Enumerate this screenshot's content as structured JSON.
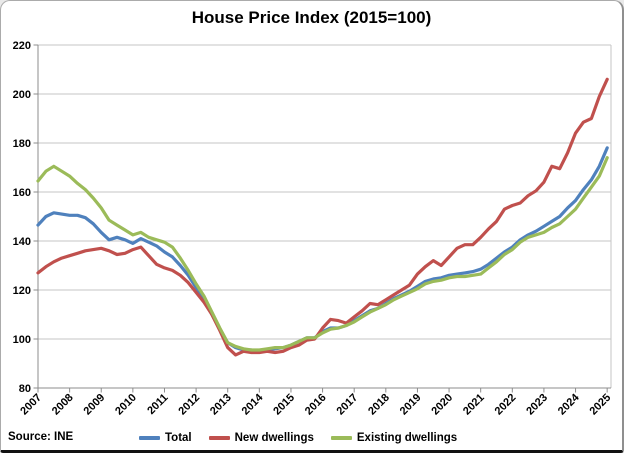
{
  "title": "House Price Index (2015=100)",
  "source": "Source: INE",
  "legend": [
    {
      "label": "Total",
      "color": "#4F81BD"
    },
    {
      "label": "New dwellings",
      "color": "#C0504D"
    },
    {
      "label": "Existing dwellings",
      "color": "#9BBB59"
    }
  ],
  "colors": {
    "grid": "#c6c6c6",
    "axis": "#8c8c8c",
    "text": "#000000",
    "frame": "#ababab",
    "blue": "#4F81BD",
    "red": "#C0504D",
    "green": "#9BBB59"
  },
  "chart_data": {
    "type": "line",
    "title": "House Price Index (2015=100)",
    "xlabel": "",
    "ylabel": "",
    "ylim": [
      80,
      220
    ],
    "ytick_step": 20,
    "ytick_labels": [
      "80",
      "100",
      "120",
      "140",
      "160",
      "180",
      "200",
      "220"
    ],
    "x_tick_labels": [
      "2007",
      "2008",
      "2009",
      "2010",
      "2011",
      "2012",
      "2013",
      "2014",
      "2015",
      "2016",
      "2017",
      "2018",
      "2019",
      "2020",
      "2021",
      "2022",
      "2023",
      "2024",
      "2025"
    ],
    "grid": "horizontal",
    "legend_position": "bottom",
    "categories": [
      "2007Q1",
      "2007Q2",
      "2007Q3",
      "2007Q4",
      "2008Q1",
      "2008Q2",
      "2008Q3",
      "2008Q4",
      "2009Q1",
      "2009Q2",
      "2009Q3",
      "2009Q4",
      "2010Q1",
      "2010Q2",
      "2010Q3",
      "2010Q4",
      "2011Q1",
      "2011Q2",
      "2011Q3",
      "2011Q4",
      "2012Q1",
      "2012Q2",
      "2012Q3",
      "2012Q4",
      "2013Q1",
      "2013Q2",
      "2013Q3",
      "2013Q4",
      "2014Q1",
      "2014Q2",
      "2014Q3",
      "2014Q4",
      "2015Q1",
      "2015Q2",
      "2015Q3",
      "2015Q4",
      "2016Q1",
      "2016Q2",
      "2016Q3",
      "2016Q4",
      "2017Q1",
      "2017Q2",
      "2017Q3",
      "2017Q4",
      "2018Q1",
      "2018Q2",
      "2018Q3",
      "2018Q4",
      "2019Q1",
      "2019Q2",
      "2019Q3",
      "2019Q4",
      "2020Q1",
      "2020Q2",
      "2020Q3",
      "2020Q4",
      "2021Q1",
      "2021Q2",
      "2021Q3",
      "2021Q4",
      "2022Q1",
      "2022Q2",
      "2022Q3",
      "2022Q4",
      "2023Q1",
      "2023Q2",
      "2023Q3",
      "2023Q4",
      "2024Q1",
      "2024Q2",
      "2024Q3",
      "2024Q4",
      "2025Q1"
    ],
    "series": [
      {
        "name": "Total",
        "color": "#4F81BD",
        "values": [
          146.5,
          150,
          151.5,
          151,
          150.5,
          150.5,
          149.5,
          147,
          143.5,
          140.5,
          141.5,
          140.5,
          139,
          141,
          139.5,
          138,
          135.5,
          133.5,
          130,
          126,
          121,
          116.5,
          110,
          104,
          98.5,
          96.5,
          95.5,
          95.5,
          95,
          95.5,
          96,
          96.5,
          97.5,
          99,
          100.5,
          100.5,
          103,
          104.5,
          104.5,
          105.5,
          107.5,
          109.5,
          111.5,
          112.5,
          114.5,
          116.5,
          118,
          119.5,
          121.5,
          123.5,
          124.5,
          125,
          126,
          126.5,
          127,
          127.5,
          128.5,
          130.5,
          133,
          135.5,
          137.5,
          140.5,
          142.5,
          144,
          146,
          148,
          150,
          153.5,
          156.5,
          161,
          165,
          170.5,
          178
        ]
      },
      {
        "name": "New dwellings",
        "color": "#C0504D",
        "values": [
          127,
          129.5,
          131.5,
          133,
          134,
          135,
          136,
          136.5,
          137,
          136,
          134.5,
          135,
          136.5,
          137.5,
          134,
          130.5,
          129,
          128,
          126,
          123,
          119,
          115,
          110,
          103.5,
          96.5,
          93.5,
          95,
          94.5,
          94.5,
          95,
          94.5,
          95,
          96.5,
          97.5,
          99.5,
          100,
          104.5,
          108,
          107.5,
          106.5,
          109,
          111.5,
          114.5,
          114,
          116,
          118,
          120,
          122,
          126.5,
          129.5,
          132,
          130,
          133.5,
          137,
          138.5,
          138.5,
          141.5,
          145,
          148,
          153,
          154.5,
          155.5,
          158.5,
          160.5,
          164,
          170.5,
          169.5,
          176,
          184,
          188.5,
          190,
          199,
          206
        ]
      },
      {
        "name": "Existing dwellings",
        "color": "#9BBB59",
        "values": [
          164.5,
          168.5,
          170.5,
          168.5,
          166.5,
          163.5,
          161,
          157.5,
          153.5,
          148.5,
          146.5,
          144.5,
          142.5,
          143.5,
          141.5,
          140.5,
          139.5,
          137.5,
          133,
          128,
          122.5,
          117.5,
          111,
          104.5,
          98.5,
          97,
          96,
          95.5,
          95.5,
          96,
          96.5,
          96.5,
          97.5,
          99,
          100.5,
          100.5,
          102.5,
          104,
          104.5,
          105.5,
          107,
          109,
          111,
          112.5,
          114,
          116,
          117.5,
          119,
          120.5,
          122.5,
          123.5,
          124,
          125,
          125.5,
          125.5,
          126,
          126.5,
          129,
          131.5,
          134.5,
          136.5,
          139.5,
          141.5,
          142.5,
          143.5,
          145.5,
          147,
          150,
          153,
          157.5,
          162,
          166.5,
          174
        ]
      }
    ]
  }
}
